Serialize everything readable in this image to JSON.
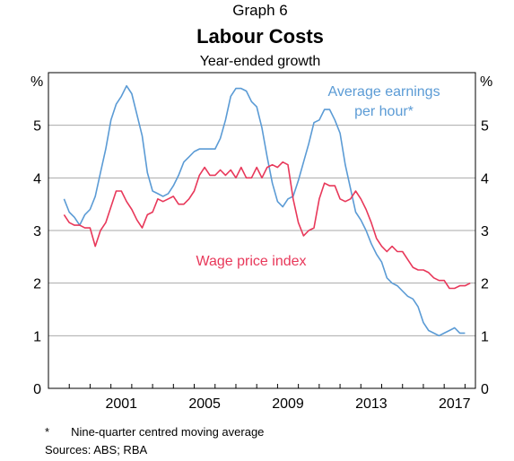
{
  "graph_number": "Graph 6",
  "footnote": {
    "marker": "*",
    "text": "Nine-quarter centred moving average"
  },
  "sources": "Sources:   ABS; RBA",
  "colors": {
    "average_earnings": "#5b9bd5",
    "wage_price_index": "#e8385a",
    "grid": "#aaaaaa",
    "axis": "#000000"
  },
  "chart_data": {
    "type": "line",
    "title": "Labour Costs",
    "subtitle": "Year-ended growth",
    "ylabel_left": "%",
    "ylabel_right": "%",
    "ylim": [
      0,
      6
    ],
    "yticks": [
      "0",
      "1",
      "2",
      "3",
      "4",
      "5"
    ],
    "xlim": [
      1997.0,
      2017.5
    ],
    "xticks": [
      {
        "value": 2001.0,
        "label": "2001"
      },
      {
        "value": 2005.0,
        "label": "2005"
      },
      {
        "value": 2009.0,
        "label": "2009"
      },
      {
        "value": 2013.0,
        "label": "2013"
      },
      {
        "value": 2017.0,
        "label": "2017"
      }
    ],
    "grid": true,
    "series": [
      {
        "key": "average_earnings",
        "name": "Average earnings per hour*",
        "label_lines": [
          "Average earnings",
          "per hour*"
        ],
        "x": [
          1997.75,
          1998.0,
          1998.25,
          1998.5,
          1998.75,
          1999.0,
          1999.25,
          1999.5,
          1999.75,
          2000.0,
          2000.25,
          2000.5,
          2000.75,
          2001.0,
          2001.25,
          2001.5,
          2001.75,
          2002.0,
          2002.25,
          2002.5,
          2002.75,
          2003.0,
          2003.25,
          2003.5,
          2003.75,
          2004.0,
          2004.25,
          2004.5,
          2004.75,
          2005.0,
          2005.25,
          2005.5,
          2005.75,
          2006.0,
          2006.25,
          2006.5,
          2006.75,
          2007.0,
          2007.25,
          2007.5,
          2007.75,
          2008.0,
          2008.25,
          2008.5,
          2008.75,
          2009.0,
          2009.25,
          2009.5,
          2009.75,
          2010.0,
          2010.25,
          2010.5,
          2010.75,
          2011.0,
          2011.25,
          2011.5,
          2011.75,
          2012.0,
          2012.25,
          2012.5,
          2012.75,
          2013.0,
          2013.25,
          2013.5,
          2013.75,
          2014.0,
          2014.25,
          2014.5,
          2014.75,
          2015.0,
          2015.25,
          2015.5,
          2015.75,
          2016.0,
          2016.25,
          2016.5,
          2016.75,
          2017.0
        ],
        "values": [
          3.6,
          3.35,
          3.25,
          3.1,
          3.3,
          3.4,
          3.65,
          4.1,
          4.55,
          5.1,
          5.4,
          5.55,
          5.75,
          5.6,
          5.2,
          4.8,
          4.1,
          3.75,
          3.7,
          3.65,
          3.7,
          3.85,
          4.05,
          4.3,
          4.4,
          4.5,
          4.55,
          4.55,
          4.55,
          4.55,
          4.75,
          5.1,
          5.55,
          5.7,
          5.7,
          5.65,
          5.45,
          5.35,
          4.95,
          4.4,
          3.9,
          3.55,
          3.45,
          3.6,
          3.65,
          3.95,
          4.3,
          4.65,
          5.05,
          5.1,
          5.3,
          5.3,
          5.1,
          4.85,
          4.25,
          3.8,
          3.35,
          3.2,
          3.0,
          2.75,
          2.55,
          2.4,
          2.1,
          2.0,
          1.95,
          1.85,
          1.75,
          1.7,
          1.55,
          1.25,
          1.1,
          1.05,
          1.0,
          1.05,
          1.1,
          1.15,
          1.05,
          1.05
        ]
      },
      {
        "key": "wage_price_index",
        "name": "Wage price index",
        "label_lines": [
          "Wage price index"
        ],
        "x": [
          1997.75,
          1998.0,
          1998.25,
          1998.5,
          1998.75,
          1999.0,
          1999.25,
          1999.5,
          1999.75,
          2000.0,
          2000.25,
          2000.5,
          2000.75,
          2001.0,
          2001.25,
          2001.5,
          2001.75,
          2002.0,
          2002.25,
          2002.5,
          2002.75,
          2003.0,
          2003.25,
          2003.5,
          2003.75,
          2004.0,
          2004.25,
          2004.5,
          2004.75,
          2005.0,
          2005.25,
          2005.5,
          2005.75,
          2006.0,
          2006.25,
          2006.5,
          2006.75,
          2007.0,
          2007.25,
          2007.5,
          2007.75,
          2008.0,
          2008.25,
          2008.5,
          2008.75,
          2009.0,
          2009.25,
          2009.5,
          2009.75,
          2010.0,
          2010.25,
          2010.5,
          2010.75,
          2011.0,
          2011.25,
          2011.5,
          2011.75,
          2012.0,
          2012.25,
          2012.5,
          2012.75,
          2013.0,
          2013.25,
          2013.5,
          2013.75,
          2014.0,
          2014.25,
          2014.5,
          2014.75,
          2015.0,
          2015.25,
          2015.5,
          2015.75,
          2016.0,
          2016.25,
          2016.5,
          2016.75,
          2017.0,
          2017.25
        ],
        "values": [
          3.3,
          3.15,
          3.1,
          3.1,
          3.05,
          3.05,
          2.7,
          3.0,
          3.15,
          3.45,
          3.75,
          3.75,
          3.55,
          3.4,
          3.2,
          3.05,
          3.3,
          3.35,
          3.6,
          3.55,
          3.6,
          3.65,
          3.5,
          3.5,
          3.6,
          3.75,
          4.05,
          4.2,
          4.05,
          4.05,
          4.15,
          4.05,
          4.15,
          4.0,
          4.2,
          4.0,
          4.0,
          4.2,
          4.0,
          4.2,
          4.25,
          4.2,
          4.3,
          4.25,
          3.6,
          3.15,
          2.9,
          3.0,
          3.05,
          3.6,
          3.9,
          3.85,
          3.85,
          3.6,
          3.55,
          3.6,
          3.75,
          3.6,
          3.4,
          3.15,
          2.85,
          2.7,
          2.6,
          2.7,
          2.6,
          2.6,
          2.45,
          2.3,
          2.25,
          2.25,
          2.2,
          2.1,
          2.05,
          2.05,
          1.9,
          1.9,
          1.95,
          1.95,
          2.0
        ]
      }
    ]
  }
}
